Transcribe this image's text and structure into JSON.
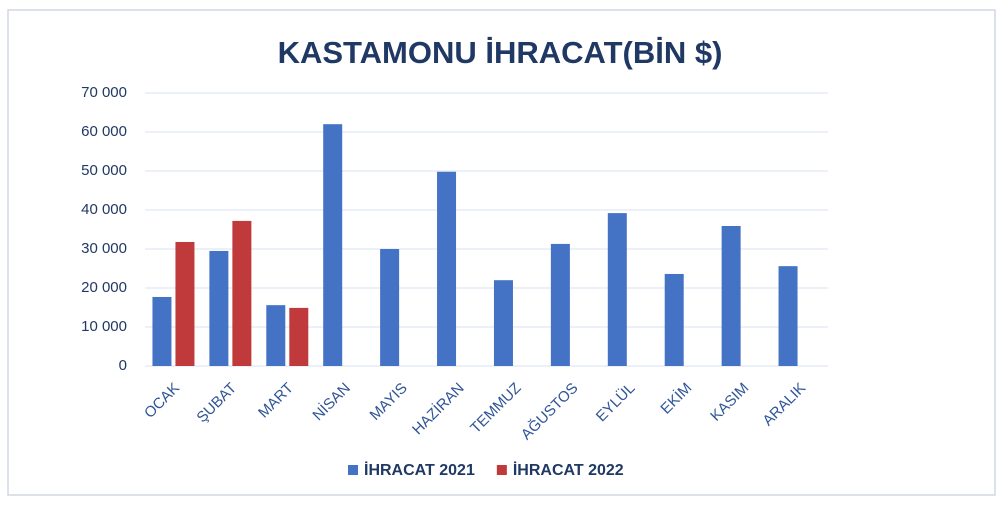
{
  "chart_data": {
    "type": "bar",
    "title": "KASTAMONU İHRACAT(BİN $)",
    "categories": [
      "OCAK",
      "ŞUBAT",
      "MART",
      "NİSAN",
      "MAYIS",
      "HAZİRAN",
      "TEMMUZ",
      "AĞUSTOS",
      "EYLÜL",
      "EKİM",
      "KASIM",
      "ARALIK"
    ],
    "series": [
      {
        "name": "İHRACAT 2021",
        "color": "#4472c4",
        "values": [
          17700,
          29500,
          15600,
          62000,
          30000,
          49800,
          22000,
          31300,
          39200,
          23600,
          35900,
          25600
        ]
      },
      {
        "name": "İHRACAT 2022",
        "color": "#c0393b",
        "values": [
          31800,
          37200,
          14900,
          null,
          null,
          null,
          null,
          null,
          null,
          null,
          null,
          null
        ]
      }
    ],
    "ylim": [
      0,
      70000
    ],
    "yticks": [
      0,
      {
        "value": 10000,
        "label": "10 000"
      },
      {
        "value": 20000,
        "label": "20 000"
      },
      {
        "value": 30000,
        "label": "30 000"
      },
      {
        "value": 40000,
        "label": "40 000"
      },
      {
        "value": 50000,
        "label": "50 000"
      },
      {
        "value": 60000,
        "label": "60 000"
      },
      {
        "value": 70000,
        "label": "70 000"
      }
    ],
    "grid": true
  }
}
